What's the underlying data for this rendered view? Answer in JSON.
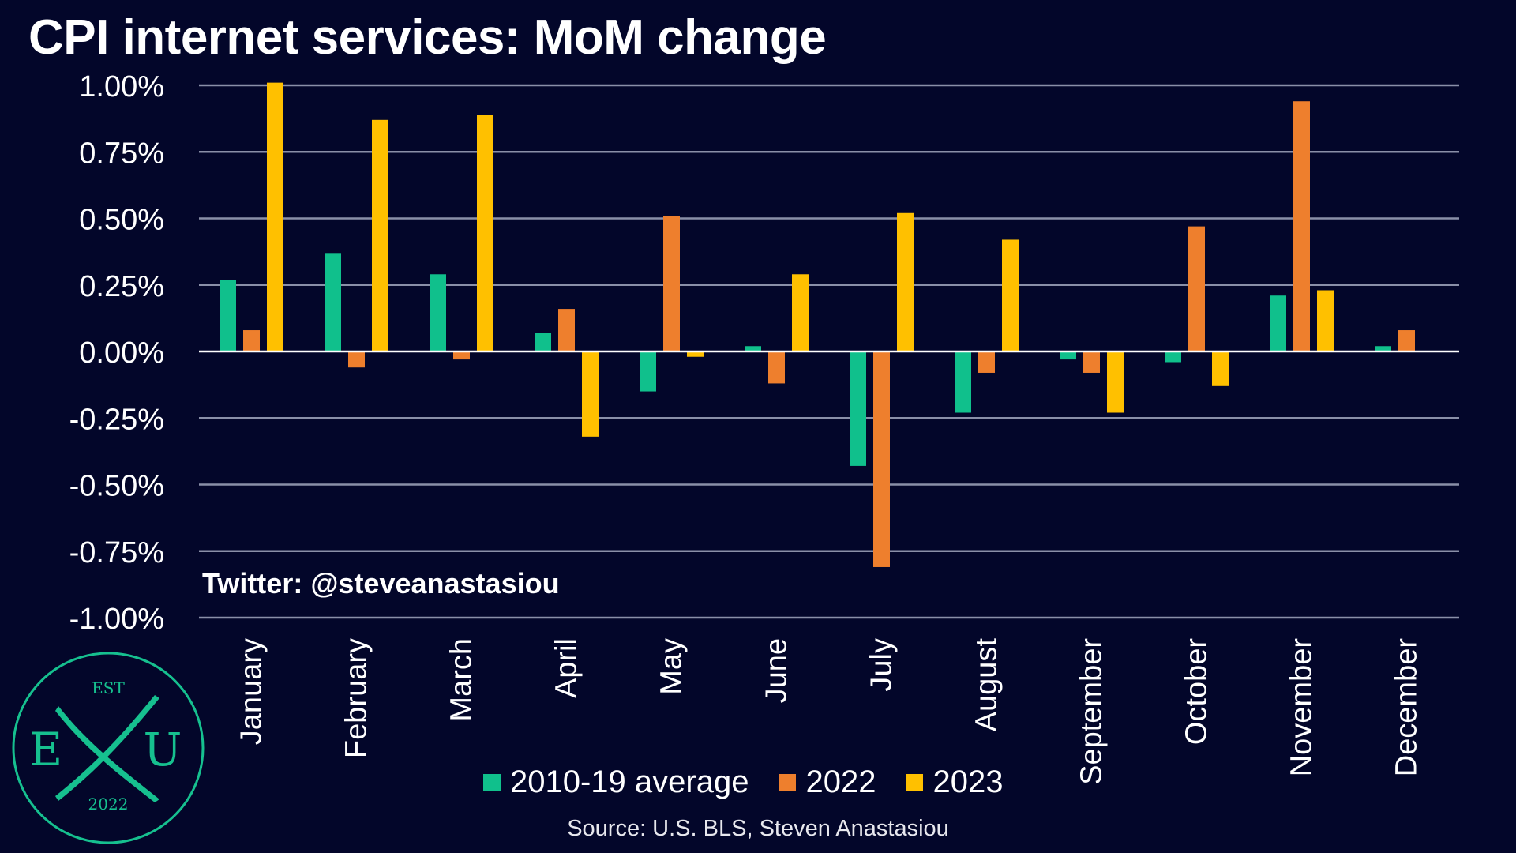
{
  "title": "CPI internet services: MoM change",
  "watermark": "Twitter: @steveanastasiou",
  "source": "Source: U.S. BLS, Steven Anastasiou",
  "logo": {
    "top": "EST",
    "left": "E",
    "right": "U",
    "bottom": "2022",
    "color": "#16c08f"
  },
  "chart_data": {
    "type": "bar",
    "categories": [
      "January",
      "February",
      "March",
      "April",
      "May",
      "June",
      "July",
      "August",
      "September",
      "October",
      "November",
      "December"
    ],
    "series": [
      {
        "name": "2010-19 average",
        "color": "#10c08c",
        "values": [
          0.27,
          0.37,
          0.29,
          0.07,
          -0.15,
          0.02,
          -0.43,
          -0.23,
          -0.03,
          -0.04,
          0.21,
          0.02
        ]
      },
      {
        "name": "2022",
        "color": "#ee7f2d",
        "values": [
          0.08,
          -0.06,
          -0.03,
          0.16,
          0.51,
          -0.12,
          -0.81,
          -0.08,
          -0.08,
          0.47,
          0.94,
          0.08
        ]
      },
      {
        "name": "2023",
        "color": "#ffc000",
        "values": [
          1.01,
          0.87,
          0.89,
          -0.32,
          -0.02,
          0.29,
          0.52,
          0.42,
          -0.23,
          -0.13,
          0.23,
          null
        ]
      }
    ],
    "ylim": [
      -1.0,
      1.0
    ],
    "yticks": [
      "1.00%",
      "0.75%",
      "0.50%",
      "0.25%",
      "0.00%",
      "-0.25%",
      "-0.50%",
      "-0.75%",
      "-1.00%"
    ],
    "ytick_values": [
      1.0,
      0.75,
      0.5,
      0.25,
      0.0,
      -0.25,
      -0.5,
      -0.75,
      -1.0
    ],
    "grid": true,
    "legend_position": "bottom"
  }
}
